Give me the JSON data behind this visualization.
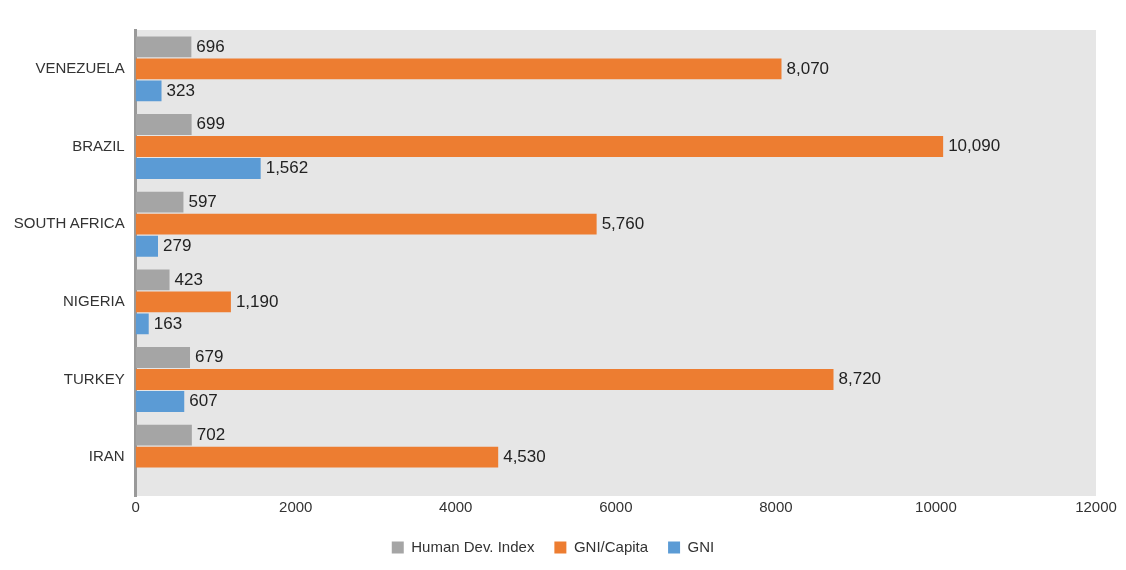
{
  "chart_data": {
    "type": "bar",
    "orientation": "horizontal",
    "categories": [
      "VENEZUELA",
      "BRAZIL",
      "SOUTH AFRICA",
      "NIGERIA",
      "TURKEY",
      "IRAN"
    ],
    "series": [
      {
        "name": "Human Dev. Index",
        "color": "#a5a5a5",
        "values": [
          696,
          699,
          597,
          423,
          679,
          702
        ],
        "value_labels": [
          "696",
          "699",
          "597",
          "423",
          "679",
          "702"
        ]
      },
      {
        "name": "GNI/Capita",
        "color": "#ed7d31",
        "values": [
          8070,
          10090,
          5760,
          1190,
          8720,
          4530
        ],
        "value_labels": [
          "8,070",
          "10,090",
          "5,760",
          "1,190",
          "8,720",
          "4,530"
        ]
      },
      {
        "name": "GNI",
        "color": "#5b9bd5",
        "values": [
          323,
          1562,
          279,
          163,
          607,
          null
        ],
        "value_labels": [
          "323",
          "1,562",
          "279",
          "163",
          "607",
          null
        ]
      }
    ],
    "xlim": [
      0,
      12000
    ],
    "xticks": [
      0,
      2000,
      4000,
      6000,
      8000,
      10000,
      12000
    ],
    "grid": false,
    "legend": "bottom"
  }
}
